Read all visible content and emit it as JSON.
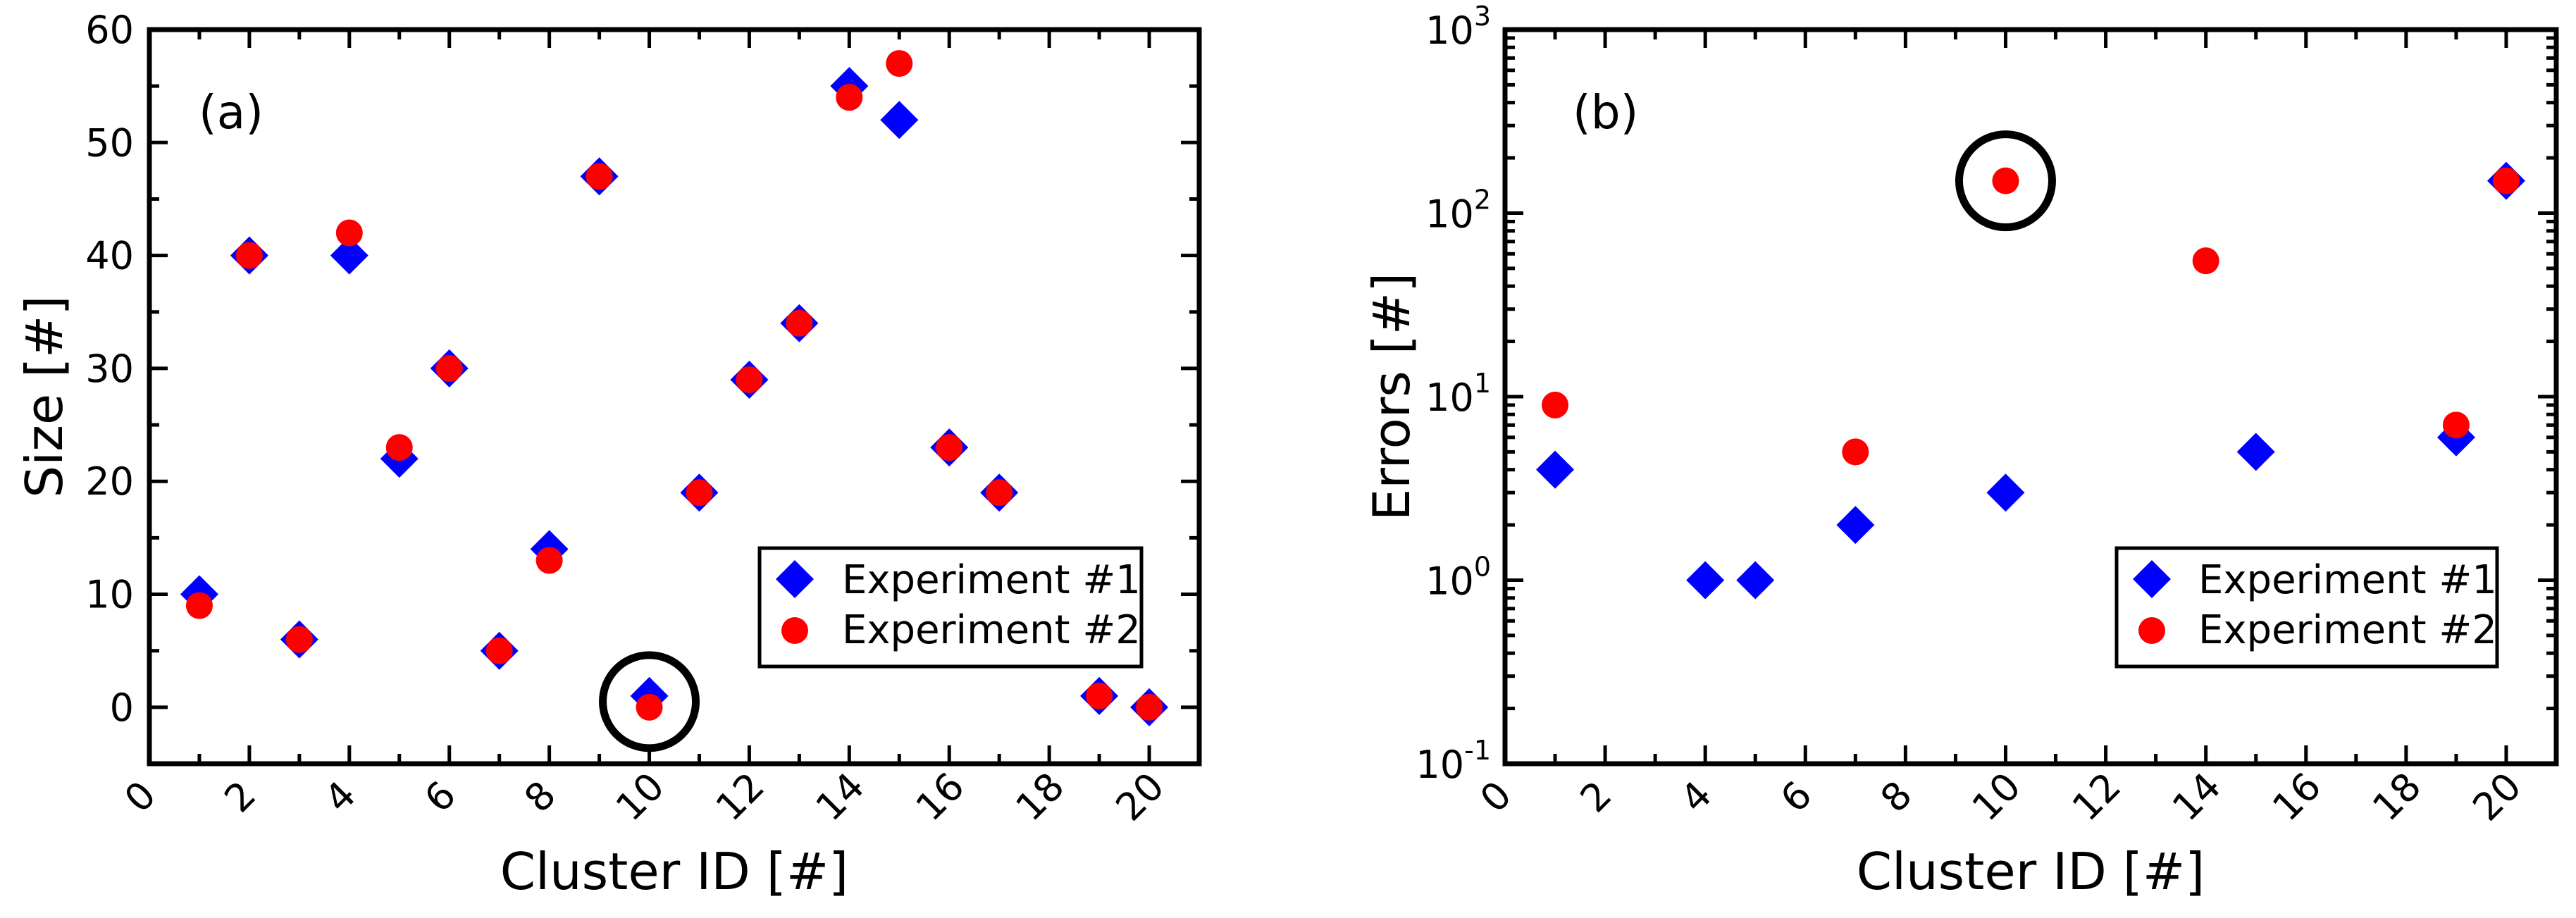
{
  "chart_data": [
    {
      "type": "scatter",
      "panel_label": "(a)",
      "xlabel": "Cluster ID [#]",
      "ylabel": "Size [#]",
      "xlim": [
        0,
        21
      ],
      "ylim": [
        -5,
        60
      ],
      "yscale": "linear",
      "xticks": [
        "0",
        "2",
        "4",
        "6",
        "8",
        "10",
        "12",
        "14",
        "16",
        "18",
        "20"
      ],
      "yticks": [
        "0",
        "10",
        "20",
        "30",
        "40",
        "50",
        "60"
      ],
      "legend_position": "bottom-right",
      "series": [
        {
          "name": "Experiment #1",
          "marker": "diamond",
          "color": "#0000ff",
          "x": [
            1,
            2,
            3,
            4,
            5,
            6,
            7,
            8,
            9,
            10,
            11,
            12,
            13,
            14,
            15,
            16,
            17,
            19,
            20
          ],
          "y": [
            10,
            40,
            6,
            40,
            22,
            30,
            5,
            14,
            47,
            1,
            19,
            29,
            34,
            55,
            52,
            23,
            19,
            1,
            0
          ]
        },
        {
          "name": "Experiment #2",
          "marker": "circle",
          "color": "#ff0000",
          "x": [
            1,
            2,
            3,
            4,
            5,
            6,
            7,
            8,
            9,
            10,
            11,
            12,
            13,
            14,
            15,
            16,
            17,
            19,
            20
          ],
          "y": [
            9,
            40,
            6,
            42,
            23,
            30,
            5,
            13,
            47,
            0,
            19,
            29,
            34,
            54,
            57,
            23,
            19,
            1,
            0
          ]
        }
      ],
      "highlight": {
        "x": 10,
        "y": 0.5
      }
    },
    {
      "type": "scatter",
      "panel_label": "(b)",
      "xlabel": "Cluster ID [#]",
      "ylabel": "Errors [#]",
      "xlim": [
        0,
        21
      ],
      "ylim": [
        0.1,
        1000
      ],
      "yscale": "log",
      "xticks": [
        "0",
        "2",
        "4",
        "6",
        "8",
        "10",
        "12",
        "14",
        "16",
        "18",
        "20"
      ],
      "yticks": [
        {
          "base": "10",
          "exp": "-1"
        },
        {
          "base": "10",
          "exp": "0"
        },
        {
          "base": "10",
          "exp": "1"
        },
        {
          "base": "10",
          "exp": "2"
        },
        {
          "base": "10",
          "exp": "3"
        }
      ],
      "legend_position": "bottom-right",
      "series": [
        {
          "name": "Experiment #1",
          "marker": "diamond",
          "color": "#0000ff",
          "x": [
            1,
            4,
            5,
            7,
            10,
            15,
            19,
            20
          ],
          "y": [
            4,
            1,
            1,
            2,
            3,
            5,
            6,
            150
          ]
        },
        {
          "name": "Experiment #2",
          "marker": "circle",
          "color": "#ff0000",
          "x": [
            1,
            7,
            10,
            14,
            19,
            20
          ],
          "y": [
            9,
            5,
            150,
            55,
            7,
            150
          ]
        }
      ],
      "highlight": {
        "x": 10,
        "y": 150
      }
    }
  ]
}
